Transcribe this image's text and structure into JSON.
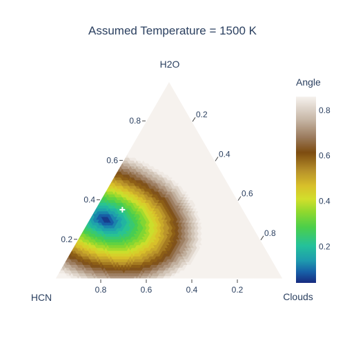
{
  "chart_data": {
    "type": "ternary-contour",
    "title": "Assumed Temperature = 1500 K",
    "axes": {
      "a": {
        "label": "H2O",
        "ticks": [
          0.2,
          0.4,
          0.6,
          0.8
        ],
        "tick_labels": [
          "0.2",
          "0.4",
          "0.6",
          "0.8"
        ]
      },
      "b": {
        "label": "HCN",
        "ticks": [
          0.2,
          0.4,
          0.6,
          0.8
        ],
        "tick_labels": [
          "0.2",
          "0.4",
          "0.6",
          "0.8"
        ]
      },
      "c": {
        "label": "Clouds",
        "ticks": [
          0.2,
          0.4,
          0.6,
          0.8
        ],
        "tick_labels": [
          "0.2",
          "0.4",
          "0.6",
          "0.8"
        ]
      }
    },
    "colorbar": {
      "title": "Angle",
      "range": [
        0.04,
        0.86
      ],
      "ticks": [
        0.2,
        0.4,
        0.6,
        0.8
      ],
      "tick_labels": [
        "0.2",
        "0.4",
        "0.6",
        "0.8"
      ],
      "colorscale": [
        [
          0.0,
          "#172a7f"
        ],
        [
          0.06,
          "#1761a8"
        ],
        [
          0.12,
          "#1e9bae"
        ],
        [
          0.2,
          "#24c19a"
        ],
        [
          0.3,
          "#4ccf4a"
        ],
        [
          0.38,
          "#8ed82e"
        ],
        [
          0.45,
          "#d2df2c"
        ],
        [
          0.52,
          "#d8c02a"
        ],
        [
          0.6,
          "#b8922a"
        ],
        [
          0.7,
          "#7d4c10"
        ],
        [
          0.78,
          "#9a7a5c"
        ],
        [
          0.88,
          "#c8b8a8"
        ],
        [
          1.0,
          "#f6f2ee"
        ]
      ]
    },
    "minimum": {
      "a": 0.3,
      "b": 0.63,
      "c": 0.07,
      "value": 0.04
    },
    "marker": {
      "a": 0.35,
      "b": 0.53,
      "c": 0.12,
      "symbol": "cross",
      "color": "#ffffff"
    }
  }
}
